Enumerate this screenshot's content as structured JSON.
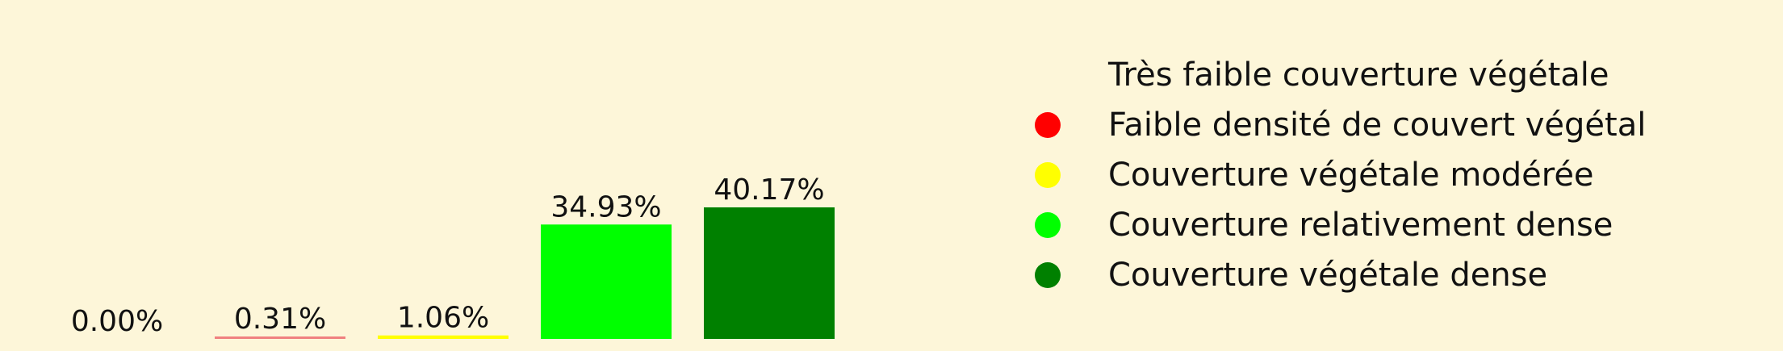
{
  "chart_data": {
    "type": "bar",
    "categories": [
      "Très faible couverture végétale",
      "Faible densité de couvert végétal",
      "Couverture végétale modérée",
      "Couverture relativement dense",
      "Couverture végétale dense"
    ],
    "values": [
      0.0,
      0.31,
      1.06,
      34.93,
      40.17
    ],
    "data_labels": [
      "0.00%",
      "0.31%",
      "1.06%",
      "34.93%",
      "40.17%"
    ],
    "colors": [
      "#fdf6d9",
      "#f08080",
      "#ffff00",
      "#00ff00",
      "#008000"
    ],
    "marker_colors": [
      "#fdf6d9",
      "#ff0000",
      "#ffff00",
      "#00ff00",
      "#008000"
    ],
    "ylim": [
      0,
      40.17
    ],
    "grid": false,
    "axes_visible": false,
    "legend": {
      "placement": "right",
      "entries": [
        "Très faible couverture végétale",
        "Faible densité de couvert végétal",
        "Couverture végétale modérée",
        "Couverture relativement dense",
        "Couverture végétale dense"
      ]
    }
  }
}
